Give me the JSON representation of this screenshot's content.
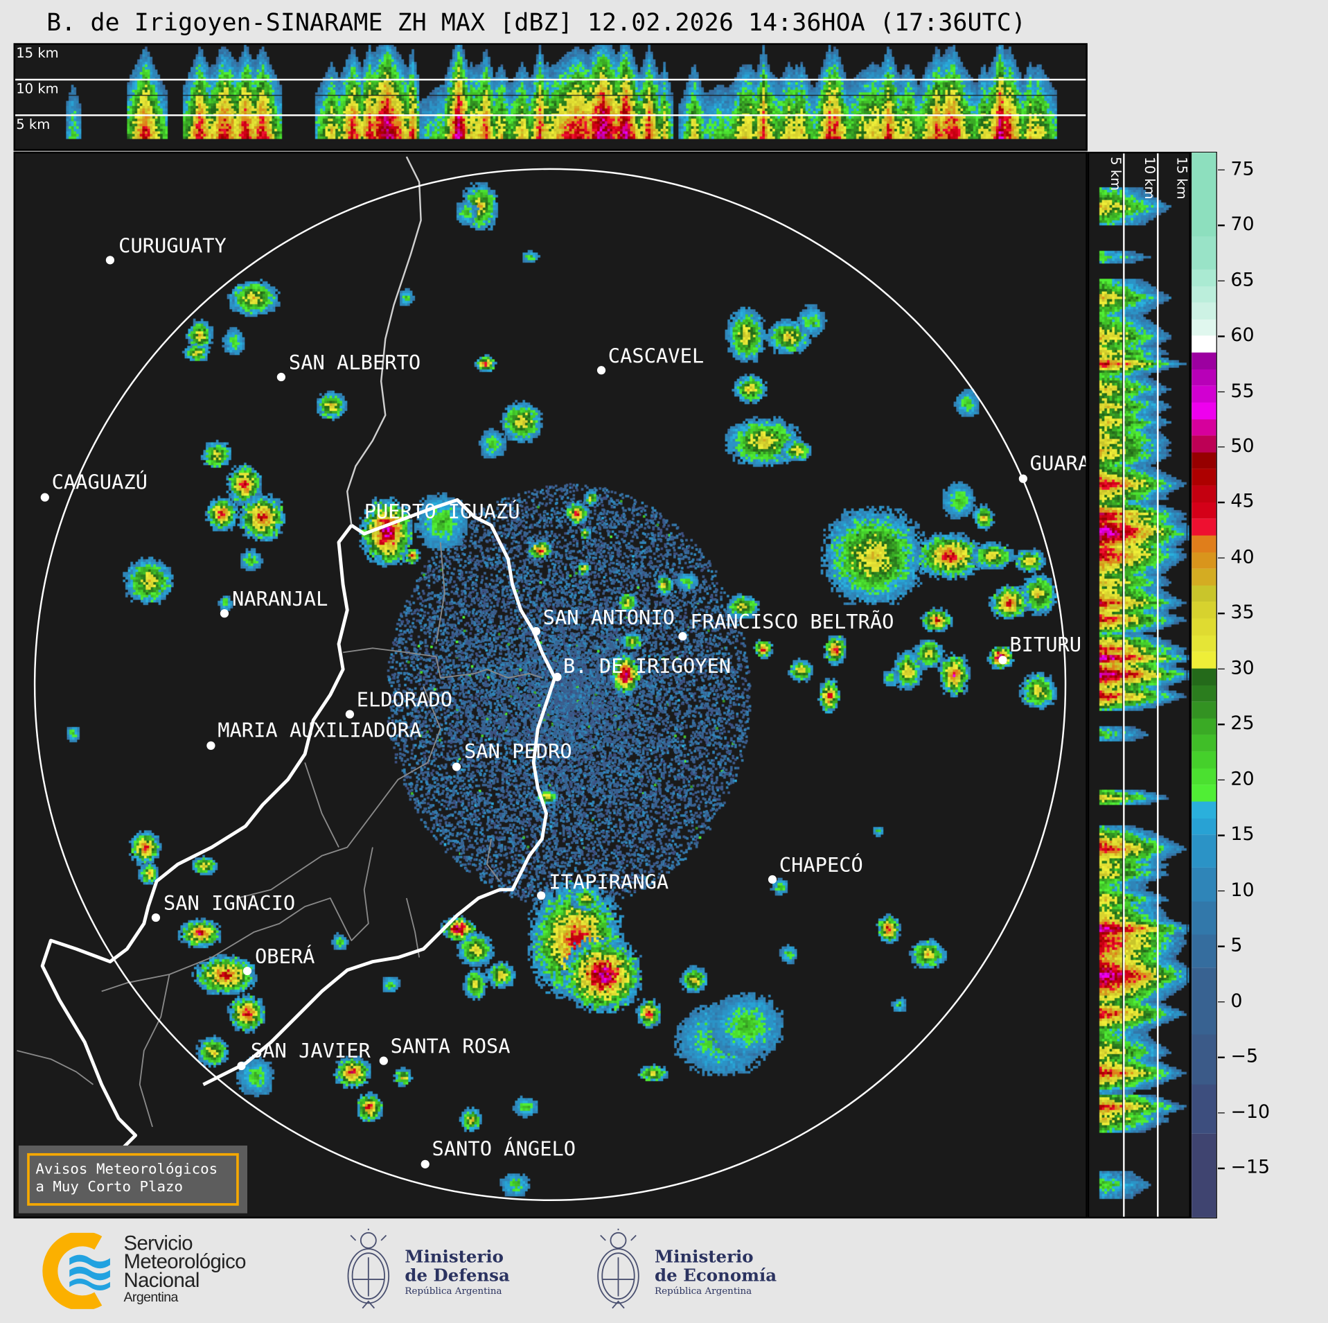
{
  "title": "B. de Irigoyen-SINARAME ZH MAX [dBZ] 12.02.2026 14:36HOA (17:36UTC)",
  "top_panel": {
    "altitude_labels": [
      "15 km",
      "10 km",
      "5 km"
    ]
  },
  "side_panel": {
    "altitude_labels": [
      "5 km",
      "10 km",
      "15 km"
    ]
  },
  "colorbar": {
    "unit": "dBZ",
    "range": [
      -19.5,
      76.5
    ],
    "ticks": [
      "75",
      "70",
      "65",
      "60",
      "55",
      "50",
      "45",
      "40",
      "35",
      "30",
      "25",
      "20",
      "15",
      "10",
      "5",
      "0",
      "−5",
      "−10",
      "−15"
    ],
    "tick_values": [
      75,
      70,
      65,
      60,
      55,
      50,
      45,
      40,
      35,
      30,
      25,
      20,
      15,
      10,
      5,
      0,
      -5,
      -10,
      -15
    ],
    "bins": [
      {
        "from": -19.5,
        "color": "#3f4470"
      },
      {
        "from": -12,
        "color": "#3d4e7e"
      },
      {
        "from": -7.5,
        "color": "#3b5a88"
      },
      {
        "from": -3,
        "color": "#386291"
      },
      {
        "from": 3,
        "color": "#356d9e"
      },
      {
        "from": 6,
        "color": "#3278aa"
      },
      {
        "from": 9,
        "color": "#2f85b8"
      },
      {
        "from": 12,
        "color": "#2b93c6"
      },
      {
        "from": 15,
        "color": "#28a2d4"
      },
      {
        "from": 16.5,
        "color": "#2ab0dc"
      },
      {
        "from": 18,
        "color": "#50ee35"
      },
      {
        "from": 19.5,
        "color": "#4be030"
      },
      {
        "from": 21,
        "color": "#45d02b"
      },
      {
        "from": 22.5,
        "color": "#40be28"
      },
      {
        "from": 24,
        "color": "#3aaa25"
      },
      {
        "from": 25.5,
        "color": "#339222"
      },
      {
        "from": 27,
        "color": "#2b7d1e"
      },
      {
        "from": 28.5,
        "color": "#246a1a"
      },
      {
        "from": 30,
        "color": "#eeee38"
      },
      {
        "from": 31.5,
        "color": "#e5e536"
      },
      {
        "from": 33,
        "color": "#dfdb31"
      },
      {
        "from": 34.5,
        "color": "#d7d22e"
      },
      {
        "from": 36,
        "color": "#c9c52b"
      },
      {
        "from": 37.5,
        "color": "#d4ac22"
      },
      {
        "from": 39,
        "color": "#d9951c"
      },
      {
        "from": 40.5,
        "color": "#e07e1b"
      },
      {
        "from": 42,
        "color": "#ee1030"
      },
      {
        "from": 43.5,
        "color": "#d40018"
      },
      {
        "from": 45,
        "color": "#c40010"
      },
      {
        "from": 46.5,
        "color": "#ad0000"
      },
      {
        "from": 48,
        "color": "#960000"
      },
      {
        "from": 49.5,
        "color": "#bd0055"
      },
      {
        "from": 51,
        "color": "#d6009c"
      },
      {
        "from": 52.5,
        "color": "#ee00ee"
      },
      {
        "from": 54,
        "color": "#d100d1"
      },
      {
        "from": 55.5,
        "color": "#b800b8"
      },
      {
        "from": 57,
        "color": "#9c00a0"
      },
      {
        "from": 58.5,
        "color": "#ffffff"
      },
      {
        "from": 60,
        "color": "#e0f7ee"
      },
      {
        "from": 61.5,
        "color": "#cdf2e4"
      },
      {
        "from": 63,
        "color": "#bbeedb"
      },
      {
        "from": 64.5,
        "color": "#aaead2"
      },
      {
        "from": 66,
        "color": "#99e3c7"
      },
      {
        "from": 69,
        "color": "#8ddfbe"
      }
    ]
  },
  "map": {
    "background": "#1a1a1a",
    "range_ring_color": "#ffffff",
    "cities": [
      "CURUGUATY",
      "SAN ALBERTO",
      "CASCAVEL",
      "CAAGUAZÚ",
      "GUARA",
      "PUERTO IGUAZÚ",
      "NARANJAL",
      "SAN ANTONIO",
      "FRANCISCO BELTRÃO",
      "BITURU",
      "B. DE IRIGOYEN",
      "ELDORADO",
      "MARIA AUXILIADORA",
      "SAN PEDRO",
      "CHAPECÓ",
      "ITAPIRANGA",
      "SAN IGNACIO",
      "OBERÁ",
      "SAN JAVIER",
      "SANTA ROSA",
      "SANTO ÁNGELO"
    ]
  },
  "legend": {
    "line1": "Avisos Meteorológicos",
    "line2": "a Muy Corto Plazo",
    "border_color": "#f5a800"
  },
  "footer": {
    "smn": {
      "line1": "Servicio",
      "line2": "Meteorológico",
      "line3": "Nacional",
      "line4": "Argentina"
    },
    "defensa": {
      "line1": "Ministerio",
      "line2": "de Defensa",
      "line3": "República Argentina"
    },
    "economia": {
      "line1": "Ministerio",
      "line2": "de Economía",
      "line3": "República Argentina"
    }
  }
}
